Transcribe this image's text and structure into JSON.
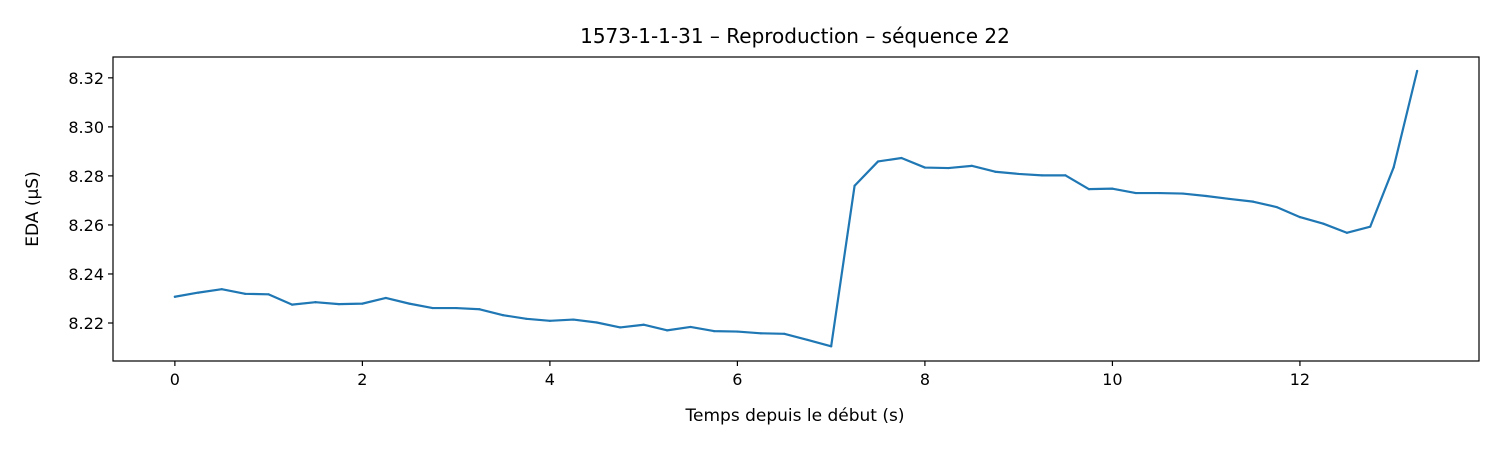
{
  "chart_data": {
    "type": "line",
    "title": "1573-1-1-31 – Reproduction – séquence 22",
    "xlabel": "Temps depuis le début (s)",
    "ylabel": "EDA (µS)",
    "xlim": [
      -0.66,
      13.91
    ],
    "ylim": [
      8.2045,
      8.3285
    ],
    "xticks": [
      0,
      2,
      4,
      6,
      8,
      10,
      12
    ],
    "xtick_labels": [
      "0",
      "2",
      "4",
      "6",
      "8",
      "10",
      "12"
    ],
    "yticks": [
      8.22,
      8.24,
      8.26,
      8.28,
      8.3,
      8.32
    ],
    "ytick_labels": [
      "8.22",
      "8.24",
      "8.26",
      "8.28",
      "8.30",
      "8.32"
    ],
    "grid": false,
    "line_color": "#1f77b4",
    "series": [
      {
        "x": [
          0,
          0.25,
          0.5,
          0.75,
          1.0,
          1.25,
          1.5,
          1.75,
          2.0,
          2.25,
          2.5,
          2.75,
          3.0,
          3.25,
          3.5,
          3.75,
          4.0,
          4.25,
          4.5,
          4.75,
          5.0,
          5.25,
          5.5,
          5.75,
          6.0,
          6.25,
          6.5,
          6.75,
          7.0,
          7.25,
          7.5,
          7.75,
          8.0,
          8.25,
          8.5,
          8.75,
          9.0,
          9.25,
          9.5,
          9.75,
          10.0,
          10.25,
          10.5,
          10.75,
          11.0,
          11.25,
          11.5,
          11.75,
          12.0,
          12.25,
          12.5,
          12.75,
          13.0,
          13.25
        ],
        "y": [
          8.2307,
          8.2324,
          8.2338,
          8.2319,
          8.2317,
          8.2275,
          8.2285,
          8.2277,
          8.2279,
          8.2302,
          8.2279,
          8.2261,
          8.2261,
          8.2256,
          8.2232,
          8.2217,
          8.2209,
          8.2214,
          8.2202,
          8.2182,
          8.2193,
          8.217,
          8.2184,
          8.2167,
          8.2165,
          8.2158,
          8.2156,
          8.2131,
          8.2105,
          8.276,
          8.2859,
          8.2873,
          8.2834,
          8.2832,
          8.2841,
          8.2817,
          8.2808,
          8.2802,
          8.2802,
          8.2746,
          8.2748,
          8.273,
          8.273,
          8.2728,
          8.2718,
          8.2706,
          8.2695,
          8.2673,
          8.2632,
          8.2605,
          8.2568,
          8.2593,
          8.2835,
          8.3228
        ]
      }
    ]
  }
}
